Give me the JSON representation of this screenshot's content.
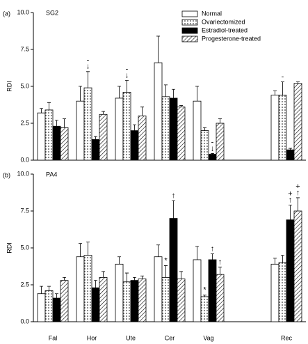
{
  "chart_data": [
    {
      "type": "bar",
      "panel": "(a)",
      "title": "SG2",
      "ylabel": "RDI",
      "ylim": [
        0,
        10
      ],
      "yticks": [
        {
          "value": 0,
          "label": "0.0"
        },
        {
          "value": 2.5,
          "label": "2.5"
        },
        {
          "value": 5,
          "label": "5.0"
        },
        {
          "value": 7.5,
          "label": "7.5"
        },
        {
          "value": 10,
          "label": "10.0"
        }
      ],
      "legend": "top-right",
      "series": [
        {
          "name": "Normal",
          "color": "#ffffff",
          "pattern": "none",
          "values": [
            3.2,
            4.0,
            4.2,
            6.6,
            4.0,
            null,
            4.4
          ],
          "errors": [
            0.3,
            1.0,
            0.8,
            1.8,
            1.0,
            null,
            0.3
          ]
        },
        {
          "name": "Ovariectomized",
          "color": "#ffffff",
          "pattern": "dots",
          "values": [
            3.4,
            4.9,
            4.6,
            4.3,
            2.0,
            null,
            4.4
          ],
          "errors": [
            0.5,
            1.1,
            0.8,
            0.8,
            0.2,
            null,
            0.9
          ]
        },
        {
          "name": "Estradiol-treated",
          "color": "#000000",
          "pattern": "none",
          "values": [
            2.3,
            1.4,
            2.0,
            4.2,
            0.4,
            null,
            0.7
          ],
          "errors": [
            0.4,
            0.2,
            0.4,
            0.6,
            0.05,
            null,
            0.1
          ]
        },
        {
          "name": "Progesterone-treated",
          "color": "#ffffff",
          "pattern": "hatch",
          "values": [
            2.2,
            3.1,
            3.0,
            3.6,
            2.5,
            null,
            5.2
          ],
          "errors": [
            0.6,
            0.2,
            0.6,
            0.1,
            0.3,
            null,
            0.1
          ]
        }
      ],
      "annotations": [
        {
          "category": "Hor",
          "series": "Ovariectomized",
          "texts": [
            "-",
            "↓"
          ]
        },
        {
          "category": "Ute",
          "series": "Ovariectomized",
          "texts": [
            "-",
            "↓"
          ]
        },
        {
          "category": "Vag",
          "series": "Estradiol-treated",
          "texts": [
            "-",
            "↓"
          ]
        },
        {
          "category": "Rec",
          "series": "Ovariectomized",
          "texts": [
            "-"
          ]
        }
      ]
    },
    {
      "type": "bar",
      "panel": "(b)",
      "title": "PA4",
      "ylabel": "RDI",
      "categories": [
        "Fal",
        "Hor",
        "Ute",
        "Cer",
        "Vag",
        null,
        "Rec"
      ],
      "ylim": [
        0,
        10
      ],
      "yticks": [
        {
          "value": 0,
          "label": "0.0"
        },
        {
          "value": 2.5,
          "label": "2.5"
        },
        {
          "value": 5,
          "label": "5.0"
        },
        {
          "value": 7.5,
          "label": "7.5"
        },
        {
          "value": 10,
          "label": "10.0"
        }
      ],
      "series": [
        {
          "color": "#ffffff",
          "pattern": "none",
          "values": [
            1.9,
            4.4,
            3.9,
            4.4,
            4.2,
            null,
            3.9
          ],
          "errors": [
            0.5,
            0.9,
            0.5,
            0.8,
            0.9,
            null,
            0.4
          ]
        },
        {
          "color": "#ffffff",
          "pattern": "dots",
          "values": [
            2.1,
            4.5,
            2.7,
            3.0,
            1.7,
            null,
            4.0
          ],
          "errors": [
            0.3,
            0.9,
            0.6,
            0.8,
            0.1,
            null,
            0.5
          ]
        },
        {
          "color": "#000000",
          "pattern": "none",
          "values": [
            1.6,
            2.3,
            2.8,
            7.0,
            4.2,
            null,
            6.9
          ],
          "errors": [
            0.3,
            0.5,
            0.2,
            1.2,
            0.4,
            null,
            1.0
          ]
        },
        {
          "color": "#ffffff",
          "pattern": "hatch",
          "values": [
            2.8,
            3.0,
            2.9,
            2.9,
            3.2,
            null,
            7.5
          ],
          "errors": [
            0.2,
            0.4,
            0.2,
            0.5,
            0.5,
            null,
            0.9
          ]
        }
      ],
      "annotations": [
        {
          "category": "Cer",
          "series": "Ovariectomized",
          "texts": [
            "*"
          ]
        },
        {
          "category": "Cer",
          "series": "Estradiol-treated",
          "texts": [
            "↑"
          ]
        },
        {
          "category": "Vag",
          "series": "Ovariectomized",
          "texts": [
            "*"
          ]
        },
        {
          "category": "Vag",
          "series": "Estradiol-treated",
          "texts": [
            "↑"
          ]
        },
        {
          "category": "Vag",
          "series": "Progesterone-treated",
          "texts": [
            "↑"
          ]
        },
        {
          "category": "Rec",
          "series": "Estradiol-treated",
          "texts": [
            "+",
            "↑"
          ]
        },
        {
          "category": "Rec",
          "series": "Progesterone-treated",
          "texts": [
            "+",
            "↑"
          ]
        }
      ]
    }
  ]
}
